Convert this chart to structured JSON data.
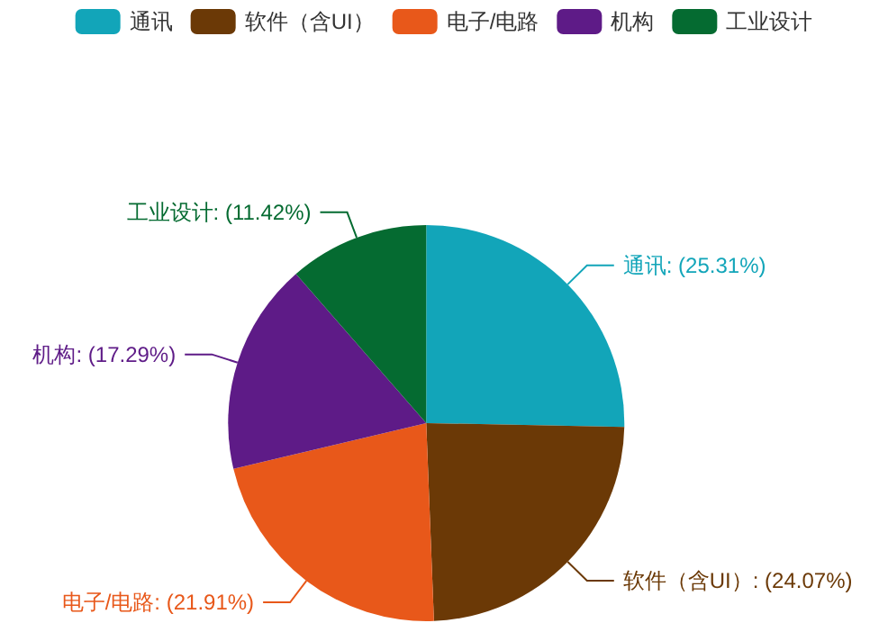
{
  "chart_data": {
    "type": "pie",
    "categories": [
      "通讯",
      "软件（含UI）",
      "电子/电路",
      "机构",
      "工业设计"
    ],
    "values": [
      25.31,
      24.07,
      21.91,
      17.29,
      11.42
    ],
    "colors": [
      "#12a5b9",
      "#6b3906",
      "#e8581a",
      "#5e1b87",
      "#056b31"
    ],
    "value_labels": [
      "通讯: (25.31%)",
      "软件（含UI）: (24.07%)",
      "电子/电路: (21.91%)",
      "机构: (17.29%)",
      "工业设计: (11.42%)"
    ],
    "legend": "top"
  }
}
